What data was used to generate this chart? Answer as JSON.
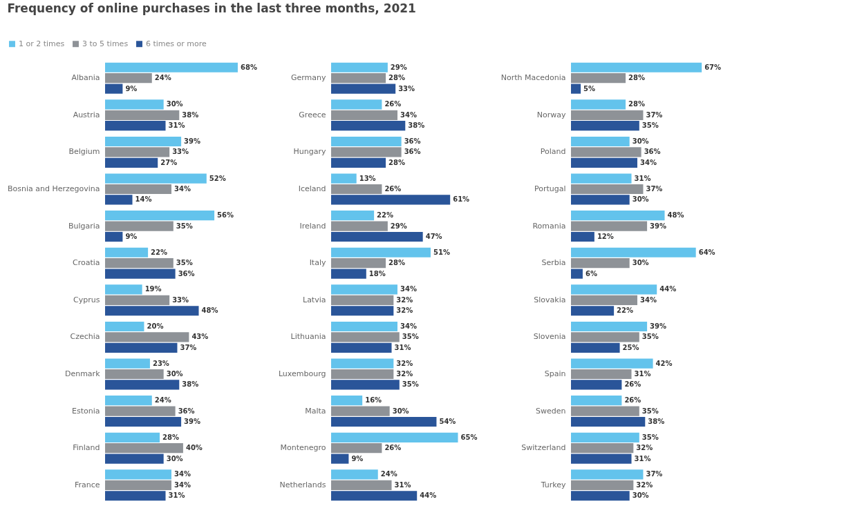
{
  "chart_data": [
    {
      "type": "bar",
      "orientation": "horizontal",
      "title": "Frequency of online purchases in the last three months, 2021",
      "legend": "top left",
      "categories": [
        "Albania",
        "Austria",
        "Belgium",
        "Bosnia and Herzegovina",
        "Bulgaria",
        "Croatia",
        "Cyprus",
        "Czechia",
        "Denmark",
        "Estonia",
        "Finland",
        "France"
      ],
      "series": [
        {
          "name": "1 or 2 times",
          "color": "#63c3ec",
          "values": [
            68,
            30,
            39,
            52,
            56,
            22,
            19,
            20,
            23,
            24,
            28,
            34
          ],
          "value_labels": [
            "68%",
            "30%",
            "39%",
            "52%",
            "56%",
            "22%",
            "19%",
            "20%",
            "23%",
            "24%",
            "28%",
            "34%"
          ]
        },
        {
          "name": "3 to 5 times",
          "color": "#8e9297",
          "values": [
            24,
            38,
            33,
            34,
            35,
            35,
            33,
            43,
            30,
            36,
            40,
            34
          ],
          "value_labels": [
            "24%",
            "38%",
            "33%",
            "34%",
            "35%",
            "35%",
            "33%",
            "43%",
            "30%",
            "36%",
            "40%",
            "34%"
          ]
        },
        {
          "name": "6 times or more",
          "color": "#2a5599",
          "values": [
            9,
            31,
            27,
            14,
            9,
            36,
            48,
            37,
            38,
            39,
            30,
            31
          ],
          "value_labels": [
            "9%",
            "31%",
            "27%",
            "14%",
            "9%",
            "36%",
            "48%",
            "37%",
            "38%",
            "39%",
            "30%",
            "31%"
          ]
        }
      ]
    },
    {
      "type": "bar",
      "orientation": "horizontal",
      "categories": [
        "Germany",
        "Greece",
        "Hungary",
        "Iceland",
        "Ireland",
        "Italy",
        "Latvia",
        "Lithuania",
        "Luxembourg",
        "Malta",
        "Montenegro",
        "Netherlands"
      ],
      "series": [
        {
          "color": "#63c3ec",
          "values": [
            29,
            26,
            36,
            13,
            22,
            51,
            34,
            34,
            32,
            16,
            65,
            24
          ],
          "value_labels": [
            "29%",
            "26%",
            "36%",
            "13%",
            "22%",
            "51%",
            "34%",
            "34%",
            "32%",
            "16%",
            "65%",
            "24%"
          ]
        },
        {
          "color": "#8e9297",
          "values": [
            28,
            34,
            36,
            26,
            29,
            28,
            32,
            35,
            32,
            30,
            26,
            31
          ],
          "value_labels": [
            "28%",
            "34%",
            "36%",
            "26%",
            "29%",
            "28%",
            "32%",
            "35%",
            "32%",
            "30%",
            "26%",
            "31%"
          ]
        },
        {
          "color": "#2a5599",
          "values": [
            33,
            38,
            28,
            61,
            47,
            18,
            32,
            31,
            35,
            54,
            9,
            44
          ],
          "value_labels": [
            "33%",
            "38%",
            "28%",
            "61%",
            "47%",
            "18%",
            "32%",
            "31%",
            "35%",
            "54%",
            "9%",
            "44%"
          ]
        }
      ]
    },
    {
      "type": "bar",
      "orientation": "horizontal",
      "categories": [
        "North Macedonia",
        "Norway",
        "Poland",
        "Portugal",
        "Romania",
        "Serbia",
        "Slovakia",
        "Slovenia",
        "Spain",
        "Sweden",
        "Switzerland",
        "Turkey"
      ],
      "series": [
        {
          "color": "#63c3ec",
          "values": [
            67,
            28,
            30,
            31,
            48,
            64,
            44,
            39,
            42,
            26,
            35,
            37
          ],
          "value_labels": [
            "67%",
            "28%",
            "30%",
            "31%",
            "48%",
            "64%",
            "44%",
            "39%",
            "42%",
            "26%",
            "35%",
            "37%"
          ]
        },
        {
          "color": "#8e9297",
          "values": [
            28,
            37,
            36,
            37,
            39,
            30,
            34,
            35,
            31,
            35,
            32,
            32
          ],
          "value_labels": [
            "28%",
            "37%",
            "36%",
            "37%",
            "39%",
            "30%",
            "34%",
            "35%",
            "31%",
            "35%",
            "32%",
            "32%"
          ]
        },
        {
          "color": "#2a5599",
          "values": [
            5,
            35,
            34,
            30,
            12,
            6,
            22,
            25,
            26,
            38,
            31,
            30
          ],
          "value_labels": [
            "5%",
            "35%",
            "34%",
            "30%",
            "12%",
            "6%",
            "22%",
            "25%",
            "26%",
            "38%",
            "31%",
            "30%"
          ]
        }
      ]
    }
  ]
}
